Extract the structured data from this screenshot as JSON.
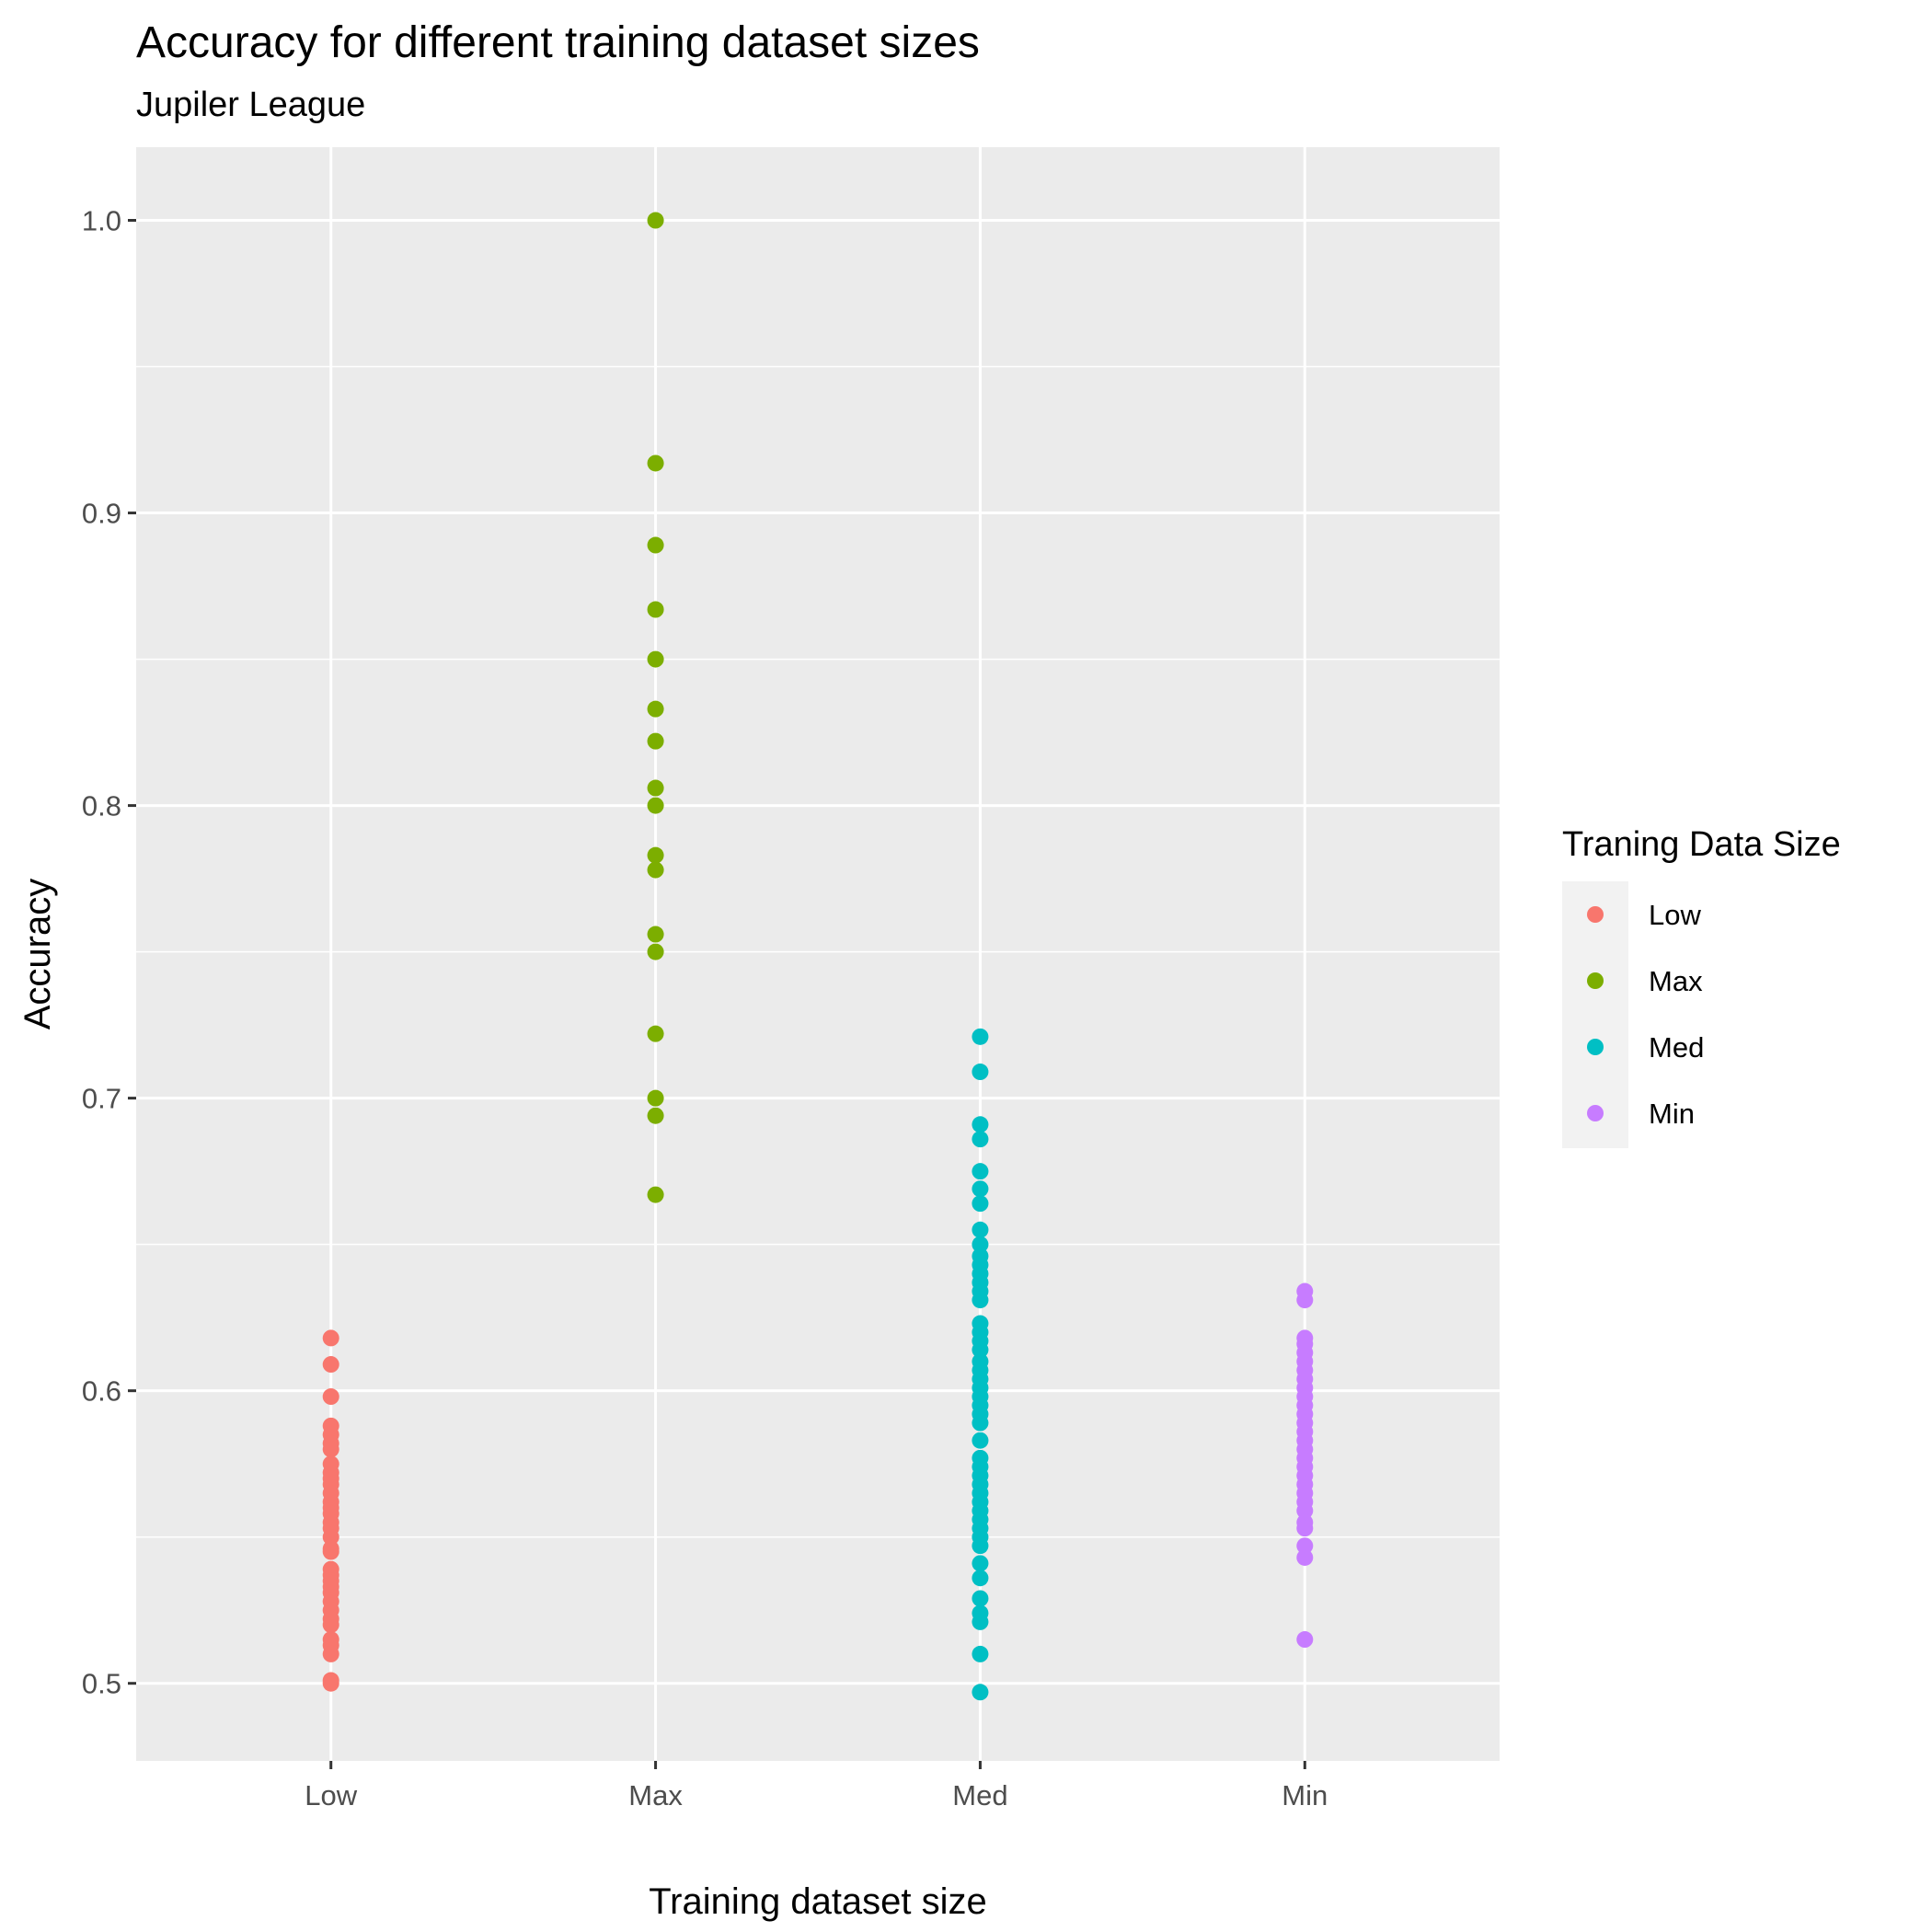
{
  "chart_data": {
    "type": "scatter",
    "title": "Accuracy for different training dataset sizes",
    "subtitle": "Jupiler League",
    "xlabel": "Training dataset size",
    "ylabel": "Accuracy",
    "categories": [
      "Low",
      "Max",
      "Med",
      "Min"
    ],
    "ylim": [
      0.4735,
      1.025
    ],
    "yticks": [
      0.5,
      0.6,
      0.7,
      0.8,
      0.9,
      1.0
    ],
    "ytick_labels": [
      "0.5",
      "0.6",
      "0.7",
      "0.8",
      "0.9",
      "1.0"
    ],
    "grid": true,
    "legend": {
      "title": "Traning Data Size",
      "position": "right"
    },
    "series": [
      {
        "name": "Low",
        "category": "Low",
        "color": "#F8766D",
        "values": [
          0.618,
          0.609,
          0.598,
          0.588,
          0.585,
          0.582,
          0.58,
          0.575,
          0.572,
          0.57,
          0.568,
          0.565,
          0.562,
          0.56,
          0.558,
          0.555,
          0.553,
          0.55,
          0.546,
          0.545,
          0.539,
          0.537,
          0.535,
          0.533,
          0.531,
          0.528,
          0.525,
          0.522,
          0.52,
          0.515,
          0.513,
          0.51,
          0.501,
          0.5
        ]
      },
      {
        "name": "Max",
        "category": "Max",
        "color": "#7CAE00",
        "values": [
          1.0,
          0.917,
          0.889,
          0.867,
          0.85,
          0.833,
          0.822,
          0.806,
          0.8,
          0.783,
          0.778,
          0.756,
          0.75,
          0.722,
          0.7,
          0.694,
          0.667
        ]
      },
      {
        "name": "Med",
        "category": "Med",
        "color": "#00BFC4",
        "values": [
          0.721,
          0.709,
          0.691,
          0.686,
          0.675,
          0.669,
          0.664,
          0.655,
          0.65,
          0.646,
          0.643,
          0.64,
          0.637,
          0.634,
          0.631,
          0.623,
          0.62,
          0.617,
          0.614,
          0.61,
          0.607,
          0.604,
          0.601,
          0.598,
          0.595,
          0.592,
          0.589,
          0.583,
          0.577,
          0.574,
          0.571,
          0.568,
          0.565,
          0.562,
          0.559,
          0.556,
          0.553,
          0.55,
          0.547,
          0.541,
          0.536,
          0.529,
          0.524,
          0.521,
          0.51,
          0.497
        ]
      },
      {
        "name": "Min",
        "category": "Min",
        "color": "#C77CFF",
        "values": [
          0.634,
          0.631,
          0.618,
          0.616,
          0.613,
          0.61,
          0.607,
          0.604,
          0.601,
          0.598,
          0.595,
          0.592,
          0.589,
          0.586,
          0.583,
          0.58,
          0.577,
          0.574,
          0.571,
          0.568,
          0.565,
          0.562,
          0.559,
          0.555,
          0.553,
          0.547,
          0.543,
          0.515
        ]
      }
    ]
  }
}
